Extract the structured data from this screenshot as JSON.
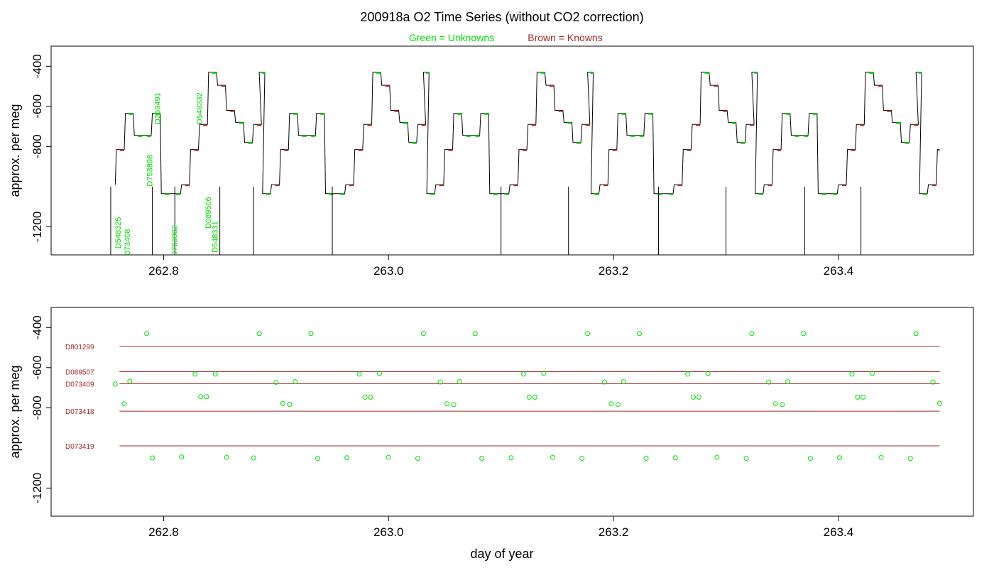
{
  "title": "200918a   O2 Time Series (without CO2 correction)",
  "legend": {
    "unknowns_label": "Green = Unknowns",
    "knowns_label": "Brown = Knowns",
    "unknowns_color": "#00e000",
    "knowns_color": "#a52a2a"
  },
  "colors": {
    "trace": "#000000",
    "axis": "#000000",
    "unknown": "#00e000",
    "known": "#a52a2a"
  },
  "chart_data": [
    {
      "type": "line",
      "ylabel": "approx. per meg",
      "xlabel": "",
      "xlim": [
        262.7,
        263.52
      ],
      "ylim": [
        -1340,
        -300
      ],
      "y_inverted": true,
      "xticks": [
        262.8,
        263.0,
        263.2,
        263.4
      ],
      "xtick_labels": [
        "262.8",
        "263.0",
        "263.2",
        "263.4"
      ],
      "yticks": [
        -400,
        -600,
        -800,
        -1200
      ],
      "ytick_labels": [
        "-400",
        "-600",
        "-800",
        "-1200"
      ],
      "cycle_period": 0.146,
      "cycle_starts": [
        262.742,
        262.888,
        263.034,
        263.18,
        263.326,
        263.472
      ],
      "cycle_levels": [
        {
          "offset": 0.0,
          "value": -1035,
          "dur": 0.007,
          "kind": "unknown"
        },
        {
          "offset": 0.008,
          "value": -990,
          "dur": 0.007,
          "kind": "known"
        },
        {
          "offset": 0.016,
          "value": -815,
          "dur": 0.007,
          "kind": "known"
        },
        {
          "offset": 0.024,
          "value": -635,
          "dur": 0.007,
          "kind": "unknown"
        },
        {
          "offset": 0.032,
          "value": -745,
          "dur": 0.007,
          "kind": "unknown"
        },
        {
          "offset": 0.04,
          "value": -745,
          "dur": 0.007,
          "kind": "unknown"
        },
        {
          "offset": 0.048,
          "value": -635,
          "dur": 0.007,
          "kind": "unknown"
        },
        {
          "offset": 0.056,
          "value": -1035,
          "dur": 0.007,
          "kind": "unknown"
        },
        {
          "offset": 0.066,
          "value": -1035,
          "dur": 0.007,
          "kind": "unknown"
        },
        {
          "offset": 0.074,
          "value": -990,
          "dur": 0.007,
          "kind": "known"
        },
        {
          "offset": 0.082,
          "value": -815,
          "dur": 0.007,
          "kind": "known"
        },
        {
          "offset": 0.09,
          "value": -690,
          "dur": 0.007,
          "kind": "known"
        },
        {
          "offset": 0.098,
          "value": -430,
          "dur": 0.007,
          "kind": "unknown"
        },
        {
          "offset": 0.106,
          "value": -495,
          "dur": 0.007,
          "kind": "known"
        },
        {
          "offset": 0.114,
          "value": -620,
          "dur": 0.007,
          "kind": "known"
        },
        {
          "offset": 0.122,
          "value": -680,
          "dur": 0.007,
          "kind": "unknown"
        },
        {
          "offset": 0.13,
          "value": -780,
          "dur": 0.007,
          "kind": "unknown"
        },
        {
          "offset": 0.138,
          "value": -690,
          "dur": 0.007,
          "kind": "known"
        },
        {
          "offset": 0.143,
          "value": -430,
          "dur": 0.005,
          "kind": "unknown"
        }
      ],
      "trace_start": 262.757,
      "trace_end": 263.49,
      "dips": [
        262.753,
        262.79,
        262.81,
        262.85,
        262.88,
        262.95,
        263.1,
        263.16,
        263.24,
        263.3,
        263.37,
        263.42
      ],
      "tank_labels": [
        {
          "text": "D548325",
          "x": 262.762,
          "y": -1230
        },
        {
          "text": "D073408",
          "x": 262.77,
          "y": -1290
        },
        {
          "text": "D753898",
          "x": 262.79,
          "y": -920
        },
        {
          "text": "D269491",
          "x": 262.797,
          "y": -610
        },
        {
          "text": "D548332",
          "x": 262.834,
          "y": -610
        },
        {
          "text": "D753902",
          "x": 262.812,
          "y": -1270
        },
        {
          "text": "D089506",
          "x": 262.842,
          "y": -1130
        },
        {
          "text": "D548331",
          "x": 262.848,
          "y": -1250
        }
      ]
    },
    {
      "type": "scatter",
      "ylabel": "approx. per meg",
      "xlabel": "day of year",
      "xlim": [
        262.7,
        263.52
      ],
      "ylim": [
        -1340,
        -300
      ],
      "y_inverted": true,
      "xticks": [
        262.8,
        263.0,
        263.2,
        263.4
      ],
      "xtick_labels": [
        "262.8",
        "263.0",
        "263.2",
        "263.4"
      ],
      "yticks": [
        -400,
        -600,
        -800,
        -1200
      ],
      "ytick_labels": [
        "-400",
        "-600",
        "-800",
        "-1200"
      ],
      "reference_lines": [
        {
          "name": "D801299",
          "y": -495
        },
        {
          "name": "D089507",
          "y": -620
        },
        {
          "name": "D073409",
          "y": -680
        },
        {
          "name": "D073418",
          "y": -817
        },
        {
          "name": "D073419",
          "y": -990
        }
      ],
      "points": [
        {
          "x": 262.757,
          "y": -682
        },
        {
          "x": 262.765,
          "y": -780
        },
        {
          "x": 262.77,
          "y": -668
        },
        {
          "x": 262.785,
          "y": -430
        },
        {
          "x": 262.79,
          "y": -1050
        },
        {
          "x": 262.816,
          "y": -1045
        },
        {
          "x": 262.828,
          "y": -632
        },
        {
          "x": 262.833,
          "y": -745
        },
        {
          "x": 262.838,
          "y": -745
        },
        {
          "x": 262.846,
          "y": -632
        },
        {
          "x": 262.856,
          "y": -1047
        },
        {
          "x": 262.88,
          "y": -1050
        },
        {
          "x": 262.885,
          "y": -430
        },
        {
          "x": 262.9,
          "y": -673
        },
        {
          "x": 262.906,
          "y": -778
        },
        {
          "x": 262.912,
          "y": -783
        },
        {
          "x": 262.917,
          "y": -670
        },
        {
          "x": 262.931,
          "y": -430
        },
        {
          "x": 262.937,
          "y": -1052
        },
        {
          "x": 262.963,
          "y": -1049
        },
        {
          "x": 262.974,
          "y": -632
        },
        {
          "x": 262.979,
          "y": -747
        },
        {
          "x": 262.984,
          "y": -747
        },
        {
          "x": 262.992,
          "y": -628
        },
        {
          "x": 263.0,
          "y": -1047
        },
        {
          "x": 263.026,
          "y": -1052
        },
        {
          "x": 263.031,
          "y": -430
        },
        {
          "x": 263.046,
          "y": -672
        },
        {
          "x": 263.052,
          "y": -780
        },
        {
          "x": 263.058,
          "y": -784
        },
        {
          "x": 263.063,
          "y": -670
        },
        {
          "x": 263.077,
          "y": -430
        },
        {
          "x": 263.083,
          "y": -1052
        },
        {
          "x": 263.109,
          "y": -1049
        },
        {
          "x": 263.12,
          "y": -632
        },
        {
          "x": 263.125,
          "y": -747
        },
        {
          "x": 263.13,
          "y": -747
        },
        {
          "x": 263.138,
          "y": -628
        },
        {
          "x": 263.146,
          "y": -1047
        },
        {
          "x": 263.172,
          "y": -1052
        },
        {
          "x": 263.177,
          "y": -430
        },
        {
          "x": 263.192,
          "y": -672
        },
        {
          "x": 263.198,
          "y": -780
        },
        {
          "x": 263.204,
          "y": -784
        },
        {
          "x": 263.209,
          "y": -670
        },
        {
          "x": 263.223,
          "y": -430
        },
        {
          "x": 263.229,
          "y": -1052
        },
        {
          "x": 263.255,
          "y": -1049
        },
        {
          "x": 263.266,
          "y": -632
        },
        {
          "x": 263.271,
          "y": -747
        },
        {
          "x": 263.276,
          "y": -747
        },
        {
          "x": 263.284,
          "y": -628
        },
        {
          "x": 263.292,
          "y": -1047
        },
        {
          "x": 263.318,
          "y": -1052
        },
        {
          "x": 263.323,
          "y": -430
        },
        {
          "x": 263.338,
          "y": -672
        },
        {
          "x": 263.344,
          "y": -780
        },
        {
          "x": 263.35,
          "y": -784
        },
        {
          "x": 263.355,
          "y": -670
        },
        {
          "x": 263.369,
          "y": -430
        },
        {
          "x": 263.375,
          "y": -1052
        },
        {
          "x": 263.401,
          "y": -1049
        },
        {
          "x": 263.412,
          "y": -632
        },
        {
          "x": 263.417,
          "y": -747
        },
        {
          "x": 263.422,
          "y": -747
        },
        {
          "x": 263.43,
          "y": -628
        },
        {
          "x": 263.438,
          "y": -1047
        },
        {
          "x": 263.464,
          "y": -1052
        },
        {
          "x": 263.469,
          "y": -430
        },
        {
          "x": 263.484,
          "y": -672
        },
        {
          "x": 263.49,
          "y": -778
        }
      ]
    }
  ]
}
